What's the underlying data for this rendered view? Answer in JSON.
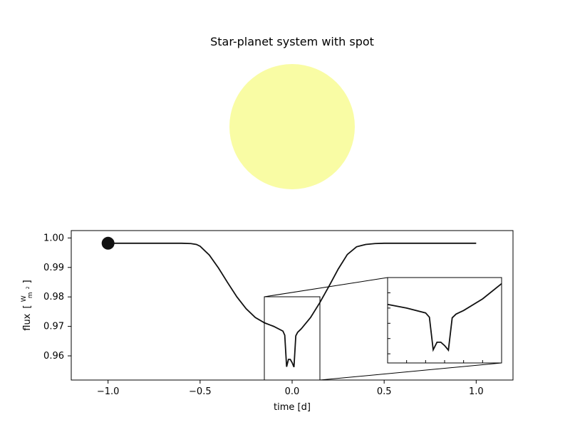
{
  "chart_data": [
    {
      "type": "image",
      "title": "Star-planet system with spot",
      "star_color": "#f9fca4",
      "star_visual": "yellow-star-disk",
      "planet_color": "#111111"
    },
    {
      "type": "line",
      "xlabel": "time [d]",
      "ylabel": "flux",
      "ylabel_units": {
        "prefix": "[",
        "numerator": "W",
        "denominator": "m",
        "denominator_power": "2",
        "suffix": "]"
      },
      "xlim": [
        -1.2,
        1.2
      ],
      "ylim": [
        0.9518,
        1.0025
      ],
      "x_ticks": [
        -1.0,
        -0.5,
        0.0,
        0.5,
        1.0
      ],
      "x_tick_labels": [
        "−1.0",
        "−0.5",
        "0.0",
        "0.5",
        "1.0"
      ],
      "y_ticks": [
        0.96,
        0.97,
        0.98,
        0.99,
        1.0
      ],
      "y_tick_labels": [
        "0.96",
        "0.97",
        "0.98",
        "0.99",
        "1.00"
      ],
      "line_color": "#111111",
      "marker_color": "#111111",
      "marker_value": {
        "x": -1.0,
        "y": 0.9982
      },
      "series": [
        {
          "x": [
            -1.0,
            -0.95,
            -0.9,
            -0.85,
            -0.8,
            -0.75,
            -0.7,
            -0.65,
            -0.6,
            -0.55,
            -0.52,
            -0.5,
            -0.45,
            -0.4,
            -0.35,
            -0.3,
            -0.25,
            -0.2,
            -0.15,
            -0.1,
            -0.05,
            -0.04,
            -0.03,
            -0.02,
            -0.01,
            0.0,
            0.01,
            0.02,
            0.03,
            0.04,
            0.05,
            0.1,
            0.15,
            0.2,
            0.25,
            0.3,
            0.35,
            0.4,
            0.45,
            0.5,
            0.52,
            0.55,
            0.6,
            0.65,
            0.7,
            0.75,
            0.8,
            0.85,
            0.9,
            0.95,
            1.0
          ],
          "y": [
            0.9982,
            0.9982,
            0.9982,
            0.9982,
            0.9982,
            0.9982,
            0.9982,
            0.9982,
            0.9982,
            0.9981,
            0.9978,
            0.9972,
            0.9942,
            0.9898,
            0.9848,
            0.98,
            0.976,
            0.973,
            0.9712,
            0.97,
            0.9684,
            0.967,
            0.9563,
            0.9588,
            0.9588,
            0.9577,
            0.9562,
            0.9668,
            0.968,
            0.9686,
            0.9692,
            0.973,
            0.978,
            0.9836,
            0.9894,
            0.9944,
            0.997,
            0.9978,
            0.9981,
            0.9982,
            0.9982,
            0.9982,
            0.9982,
            0.9982,
            0.9982,
            0.9982,
            0.9982,
            0.9982,
            0.9982,
            0.9982,
            0.9982
          ]
        }
      ],
      "inset": {
        "xlim": [
          -0.15,
          0.15
        ],
        "ylim": [
          0.952,
          0.98
        ],
        "x_ticks": [
          -0.1,
          -0.05,
          0.0,
          0.05,
          0.1
        ],
        "y_ticks": [
          0.955,
          0.96,
          0.965,
          0.97,
          0.975
        ]
      }
    }
  ]
}
